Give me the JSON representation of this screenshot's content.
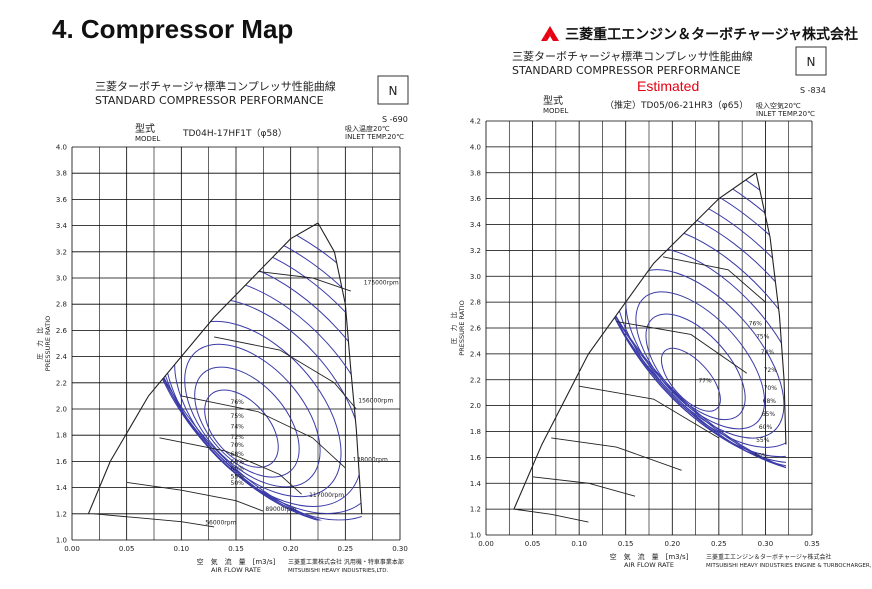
{
  "slide": {
    "title": "4.  Compressor Map",
    "brand": "三菱重工エンジン＆ターボチャージャ株式会社",
    "brand_color": "#e60012"
  },
  "chart_data": [
    {
      "type": "line",
      "title_jp": "三菱ターボチャージャ標準コンプレッサ性能曲線",
      "title_en": "STANDARD COMPRESSOR PERFORMANCE",
      "badge": "N",
      "sheet_no": "S -690",
      "model_label_jp": "型式",
      "model_label_en": "MODEL",
      "model": "TD04H-17HF1T（φ58）",
      "inlet_jp": "吸入温度20℃",
      "inlet_en": "INLET TEMP.20℃",
      "ylabel_jp": "圧　力　比",
      "ylabel_en": "PRESSURE RATIO",
      "xlabel_jp": "空　気　流　量　[m3/s]",
      "xlabel_en": "AIR FLOW RATE",
      "footer_jp": "三菱重工業株式会社 汎用機・特車事業本部",
      "footer_en": "MITSUBISHI HEAVY INDUSTRIES,LTD.",
      "xlim": [
        0,
        0.3
      ],
      "ylim": [
        1.0,
        4.0
      ],
      "xticks": [
        "0.00",
        "0.05",
        "0.10",
        "0.15",
        "0.20",
        "0.25",
        "0.30"
      ],
      "yticks": [
        "1.0",
        "1.2",
        "1.4",
        "1.6",
        "1.8",
        "2.0",
        "2.2",
        "2.4",
        "2.6",
        "2.8",
        "3.0",
        "3.2",
        "3.4",
        "3.6",
        "3.8",
        "4.0"
      ],
      "surge_line": [
        [
          0.015,
          1.2
        ],
        [
          0.035,
          1.6
        ],
        [
          0.07,
          2.1
        ],
        [
          0.13,
          2.7
        ],
        [
          0.2,
          3.3
        ],
        [
          0.225,
          3.42
        ]
      ],
      "choke_line": [
        [
          0.225,
          3.42
        ],
        [
          0.24,
          3.2
        ],
        [
          0.25,
          2.8
        ],
        [
          0.255,
          2.3
        ],
        [
          0.26,
          1.85
        ],
        [
          0.265,
          1.2
        ]
      ],
      "speed_lines": [
        {
          "label": "56000rpm",
          "x": 0.12,
          "y": 1.12,
          "points": [
            [
              0.02,
              1.2
            ],
            [
              0.06,
              1.17
            ],
            [
              0.1,
              1.14
            ],
            [
              0.13,
              1.1
            ]
          ]
        },
        {
          "label": "89000rpm",
          "x": 0.175,
          "y": 1.22,
          "points": [
            [
              0.05,
              1.44
            ],
            [
              0.1,
              1.38
            ],
            [
              0.15,
              1.3
            ],
            [
              0.175,
              1.22
            ]
          ]
        },
        {
          "label": "117000rpm",
          "x": 0.215,
          "y": 1.33,
          "points": [
            [
              0.08,
              1.78
            ],
            [
              0.14,
              1.68
            ],
            [
              0.19,
              1.5
            ],
            [
              0.21,
              1.35
            ]
          ]
        },
        {
          "label": "138000rpm",
          "x": 0.255,
          "y": 1.6,
          "points": [
            [
              0.1,
              2.1
            ],
            [
              0.17,
              1.98
            ],
            [
              0.22,
              1.78
            ],
            [
              0.25,
              1.55
            ]
          ]
        },
        {
          "label": "156000rpm",
          "x": 0.26,
          "y": 2.05,
          "points": [
            [
              0.13,
              2.55
            ],
            [
              0.19,
              2.45
            ],
            [
              0.24,
              2.2
            ],
            [
              0.26,
              2.0
            ]
          ]
        },
        {
          "label": "175000rpm",
          "x": 0.265,
          "y": 2.95,
          "points": [
            [
              0.17,
              3.05
            ],
            [
              0.22,
              3.0
            ],
            [
              0.255,
              2.9
            ]
          ]
        }
      ],
      "efficiency_islands": [
        {
          "label": "76%",
          "cx": 0.155,
          "cy": 1.85,
          "rx": 0.025,
          "ry": 0.35
        },
        {
          "label": "75%",
          "cx": 0.16,
          "cy": 1.9,
          "rx": 0.035,
          "ry": 0.5
        },
        {
          "label": "74%",
          "cx": 0.165,
          "cy": 1.95,
          "rx": 0.045,
          "ry": 0.65
        },
        {
          "label": "72%",
          "cx": 0.17,
          "cy": 2.0,
          "rx": 0.055,
          "ry": 0.8
        },
        {
          "label": "70%",
          "cx": 0.175,
          "cy": 2.05,
          "rx": 0.065,
          "ry": 0.95
        },
        {
          "label": "68%",
          "cx": 0.18,
          "cy": 2.1,
          "rx": 0.072,
          "ry": 1.08
        },
        {
          "label": "65%",
          "cx": 0.185,
          "cy": 2.15,
          "rx": 0.08,
          "ry": 1.2
        },
        {
          "label": "60%",
          "cx": 0.19,
          "cy": 2.2,
          "rx": 0.088,
          "ry": 1.3
        },
        {
          "label": "55%",
          "cx": 0.195,
          "cy": 2.25,
          "rx": 0.094,
          "ry": 1.38
        },
        {
          "label": "50%",
          "cx": 0.2,
          "cy": 2.3,
          "rx": 0.1,
          "ry": 1.45
        }
      ],
      "eff_label_x": 0.145,
      "eff_label_y": [
        2.04,
        1.93,
        1.85,
        1.77,
        1.71,
        1.64,
        1.58,
        1.53,
        1.47,
        1.42
      ]
    },
    {
      "type": "line",
      "title_jp": "三菱ターボチャージャ標準コンプレッサ性能曲線",
      "title_en": "STANDARD COMPRESSOR PERFORMANCE",
      "subtitle": "Estimated",
      "badge": "N",
      "sheet_no": "S -834",
      "model_label_jp": "型式",
      "model_label_en": "MODEL",
      "model": "（推定）TD05/06-21HR3（φ65）",
      "inlet_jp": "吸入空気20℃",
      "inlet_en": "INLET TEMP.20℃",
      "ylabel_jp": "圧　力　比",
      "ylabel_en": "PRESSURE RATIO",
      "xlabel_jp": "空　気　流　量　[m3/s]",
      "xlabel_en": "AIR FLOW RATE",
      "footer_jp": "三菱重工エンジン＆ターボチャージャ株式会社",
      "footer_en": "MITSUBISHI HEAVY INDUSTRIES ENGINE & TURBOCHARGER,LTD.",
      "xlim": [
        0,
        0.35
      ],
      "ylim": [
        1.0,
        4.2
      ],
      "xticks": [
        "0.00",
        "0.05",
        "0.10",
        "0.15",
        "0.20",
        "0.25",
        "0.30",
        "0.35"
      ],
      "yticks": [
        "1.0",
        "1.2",
        "1.4",
        "1.6",
        "1.8",
        "2.0",
        "2.2",
        "2.4",
        "2.6",
        "2.8",
        "3.0",
        "3.2",
        "3.4",
        "3.6",
        "3.8",
        "4.0",
        "4.2"
      ],
      "surge_line": [
        [
          0.03,
          1.2
        ],
        [
          0.06,
          1.7
        ],
        [
          0.11,
          2.4
        ],
        [
          0.18,
          3.1
        ],
        [
          0.25,
          3.6
        ],
        [
          0.29,
          3.8
        ]
      ],
      "choke_line": [
        [
          0.29,
          3.8
        ],
        [
          0.305,
          3.3
        ],
        [
          0.315,
          2.7
        ],
        [
          0.32,
          2.2
        ],
        [
          0.322,
          1.7
        ]
      ],
      "speed_lines": [
        {
          "label": "",
          "x": 0.1,
          "y": 1.1,
          "points": [
            [
              0.03,
              1.2
            ],
            [
              0.07,
              1.16
            ],
            [
              0.11,
              1.1
            ]
          ]
        },
        {
          "label": "",
          "x": 0.15,
          "y": 1.3,
          "points": [
            [
              0.05,
              1.45
            ],
            [
              0.11,
              1.4
            ],
            [
              0.16,
              1.3
            ]
          ]
        },
        {
          "label": "",
          "x": 0.2,
          "y": 1.5,
          "points": [
            [
              0.07,
              1.75
            ],
            [
              0.14,
              1.68
            ],
            [
              0.21,
              1.5
            ]
          ]
        },
        {
          "label": "",
          "x": 0.25,
          "y": 1.7,
          "points": [
            [
              0.1,
              2.15
            ],
            [
              0.18,
              2.05
            ],
            [
              0.25,
              1.75
            ]
          ]
        },
        {
          "label": "",
          "x": 0.28,
          "y": 2.2,
          "points": [
            [
              0.14,
              2.65
            ],
            [
              0.22,
              2.55
            ],
            [
              0.28,
              2.25
            ]
          ]
        },
        {
          "label": "",
          "x": 0.3,
          "y": 2.8,
          "points": [
            [
              0.19,
              3.15
            ],
            [
              0.26,
              3.05
            ],
            [
              0.3,
              2.8
            ]
          ]
        }
      ],
      "efficiency_islands": [
        {
          "label": "77%",
          "cx": 0.22,
          "cy": 2.2,
          "rx": 0.02,
          "ry": 0.3
        },
        {
          "label": "76%",
          "cx": 0.225,
          "cy": 2.3,
          "rx": 0.035,
          "ry": 0.5
        },
        {
          "label": "75%",
          "cx": 0.23,
          "cy": 2.35,
          "rx": 0.045,
          "ry": 0.65
        },
        {
          "label": "74%",
          "cx": 0.235,
          "cy": 2.4,
          "rx": 0.055,
          "ry": 0.8
        },
        {
          "label": "72%",
          "cx": 0.24,
          "cy": 2.45,
          "rx": 0.065,
          "ry": 0.95
        },
        {
          "label": "70%",
          "cx": 0.245,
          "cy": 2.5,
          "rx": 0.075,
          "ry": 1.1
        },
        {
          "label": "68%",
          "cx": 0.25,
          "cy": 2.55,
          "rx": 0.083,
          "ry": 1.22
        },
        {
          "label": "65%",
          "cx": 0.255,
          "cy": 2.6,
          "rx": 0.09,
          "ry": 1.33
        },
        {
          "label": "60%",
          "cx": 0.26,
          "cy": 2.65,
          "rx": 0.097,
          "ry": 1.43
        },
        {
          "label": "55%",
          "cx": 0.265,
          "cy": 2.7,
          "rx": 0.103,
          "ry": 1.52
        },
        {
          "label": "50%",
          "cx": 0.27,
          "cy": 2.75,
          "rx": 0.11,
          "ry": 1.6
        }
      ],
      "eff_label_x": 0.282,
      "eff_label_y": [
        2.18,
        2.62,
        2.52,
        2.4,
        2.26,
        2.12,
        2.02,
        1.92,
        1.82,
        1.72,
        1.6
      ],
      "eff_label_xs": [
        0.228,
        0.282,
        0.29,
        0.295,
        0.298,
        0.298,
        0.297,
        0.296,
        0.293,
        0.29,
        0.288
      ]
    }
  ]
}
